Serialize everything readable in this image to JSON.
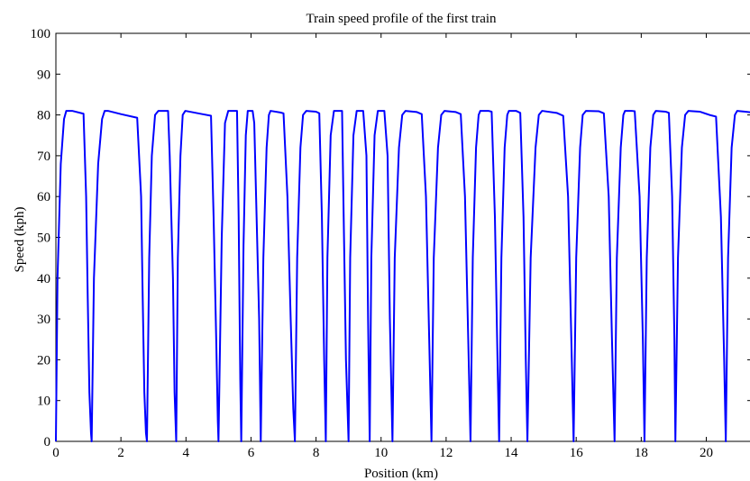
{
  "chart_data": {
    "type": "line",
    "title": "Train speed profile of the first train",
    "xlabel": "Position (km)",
    "ylabel": "Speed (kph)",
    "xlim": [
      0,
      21.4
    ],
    "ylim": [
      0,
      100
    ],
    "x_ticks": [
      0,
      2,
      4,
      6,
      8,
      10,
      12,
      14,
      16,
      18,
      20
    ],
    "y_ticks": [
      0,
      10,
      20,
      30,
      40,
      50,
      60,
      70,
      80,
      90,
      100
    ],
    "x_tick_labels": [
      "0",
      "2",
      "4",
      "6",
      "8",
      "10",
      "12",
      "14",
      "16",
      "18",
      "20"
    ],
    "y_tick_labels": [
      "0",
      "10",
      "20",
      "30",
      "40",
      "50",
      "60",
      "70",
      "80",
      "90",
      "100"
    ],
    "grid": false,
    "line_color": "#0000ff",
    "series": [
      {
        "x": [
          0,
          0.05,
          0.15,
          0.25,
          0.32,
          0.5,
          0.85,
          0.93,
          0.98,
          1.03,
          1.08,
          1.1,
          1.1,
          1.17,
          1.3,
          1.42,
          1.5,
          1.6,
          2.0,
          2.5,
          2.62,
          2.67,
          2.72,
          2.77,
          2.8,
          2.8,
          2.87,
          2.95,
          3.05,
          3.15,
          3.45,
          3.5,
          3.6,
          3.65,
          3.7,
          3.7,
          3.75,
          3.83,
          3.9,
          3.98,
          4.5,
          4.77,
          4.85,
          4.93,
          4.98,
          5.0,
          5.0,
          5.1,
          5.2,
          5.3,
          5.35,
          5.57,
          5.62,
          5.67,
          5.7,
          5.7,
          5.77,
          5.84,
          5.9,
          6.05,
          6.1,
          6.25,
          6.3,
          6.3,
          6.38,
          6.48,
          6.55,
          6.6,
          6.9,
          7.0,
          7.12,
          7.22,
          7.3,
          7.35,
          7.35,
          7.42,
          7.52,
          7.6,
          7.7,
          8.0,
          8.1,
          8.18,
          8.25,
          8.3,
          8.3,
          8.35,
          8.45,
          8.55,
          8.6,
          8.8,
          8.85,
          8.92,
          9.0,
          9.0,
          9.05,
          9.15,
          9.25,
          9.3,
          9.45,
          9.55,
          9.6,
          9.65,
          9.65,
          9.7,
          9.8,
          9.9,
          9.95,
          10.1,
          10.2,
          10.27,
          10.35,
          10.35,
          10.42,
          10.55,
          10.65,
          10.75,
          11.1,
          11.25,
          11.38,
          11.48,
          11.55,
          11.55,
          11.62,
          11.75,
          11.85,
          11.95,
          12.3,
          12.45,
          12.58,
          12.68,
          12.75,
          12.75,
          12.82,
          12.92,
          13.0,
          13.05,
          13.3,
          13.4,
          13.5,
          13.58,
          13.63,
          13.63,
          13.7,
          13.8,
          13.88,
          13.93,
          14.15,
          14.28,
          14.38,
          14.45,
          14.5,
          14.5,
          14.6,
          14.75,
          14.85,
          14.95,
          15.4,
          15.6,
          15.75,
          15.85,
          15.92,
          15.92,
          16.0,
          16.12,
          16.2,
          16.3,
          16.7,
          16.85,
          17.0,
          17.1,
          17.18,
          17.18,
          17.25,
          17.37,
          17.45,
          17.5,
          17.7,
          17.8,
          17.95,
          18.05,
          18.1,
          18.1,
          18.17,
          18.28,
          18.37,
          18.45,
          18.75,
          18.85,
          18.95,
          19.02,
          19.05,
          19.05,
          19.13,
          19.25,
          19.35,
          19.45,
          19.8,
          20.1,
          20.3,
          20.45,
          20.55,
          20.6,
          20.6,
          20.67,
          20.78,
          20.88,
          20.95,
          21.2,
          21.4
        ],
        "y": [
          0,
          40,
          68,
          79,
          81,
          81,
          80.3,
          60,
          35,
          12,
          2,
          0,
          0,
          40,
          68,
          79,
          81,
          81,
          80.2,
          79.3,
          60,
          35,
          12,
          2,
          0,
          0,
          45,
          70,
          80,
          81,
          81,
          70,
          40,
          12,
          0,
          0,
          45,
          70,
          80,
          81,
          80.2,
          79.8,
          55,
          25,
          5,
          0,
          0,
          50,
          78,
          81,
          81,
          81,
          55,
          15,
          0,
          0,
          48,
          75,
          81,
          81,
          78,
          30,
          0,
          0,
          45,
          72,
          80,
          81,
          80.6,
          80.4,
          60,
          30,
          8,
          0,
          0,
          45,
          72,
          80,
          81,
          80.8,
          80.4,
          55,
          20,
          0,
          0,
          45,
          75,
          81,
          81,
          81,
          55,
          20,
          0,
          0,
          45,
          75,
          81,
          81,
          81,
          70,
          30,
          0,
          0,
          45,
          75,
          81,
          81,
          81,
          70,
          30,
          0,
          0,
          45,
          72,
          80,
          81,
          80.7,
          80.2,
          60,
          25,
          0,
          0,
          45,
          72,
          80,
          81,
          80.7,
          80.2,
          60,
          25,
          0,
          0,
          45,
          72,
          80,
          81,
          81,
          80.8,
          55,
          20,
          0,
          0,
          45,
          72,
          80,
          81,
          81,
          80.5,
          55,
          20,
          0,
          0,
          45,
          72,
          80,
          81,
          80.5,
          79.8,
          60,
          25,
          0,
          0,
          45,
          72,
          80,
          81,
          80.9,
          80.4,
          60,
          25,
          0,
          0,
          45,
          72,
          80,
          81,
          81,
          80.9,
          60,
          25,
          0,
          0,
          45,
          72,
          80,
          81,
          80.8,
          80.5,
          60,
          25,
          0,
          0,
          45,
          72,
          80,
          81,
          80.8,
          80.0,
          79.6,
          55,
          20,
          0,
          0,
          45,
          72,
          80,
          81,
          80.8,
          80.6
        ]
      }
    ]
  }
}
